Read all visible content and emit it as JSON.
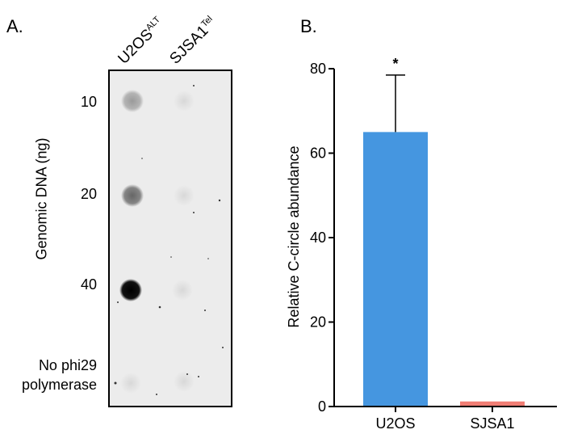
{
  "panel_a": {
    "label": "A.",
    "columns": [
      {
        "main": "U2OS",
        "sup": "ALT"
      },
      {
        "main": "SJSA1",
        "sup": "Tel"
      }
    ],
    "y_title": "Genomic DNA (ng)",
    "rows": [
      "10",
      "20",
      "40"
    ],
    "control_row": [
      "No phi29",
      "polymerase"
    ]
  },
  "panel_b": {
    "label": "B."
  },
  "chart_data": {
    "type": "bar",
    "categories": [
      "U2OS",
      "SJSA1"
    ],
    "values": [
      65,
      1.2
    ],
    "errors": [
      13.5,
      0
    ],
    "annotations": [
      "*",
      ""
    ],
    "colors": [
      "#4596e0",
      "#f07d74"
    ],
    "title": "",
    "xlabel": "",
    "ylabel": "Relative C-circle abundance",
    "ylim": [
      0,
      80
    ],
    "yticks": [
      "0",
      "20",
      "40",
      "60",
      "80"
    ]
  }
}
